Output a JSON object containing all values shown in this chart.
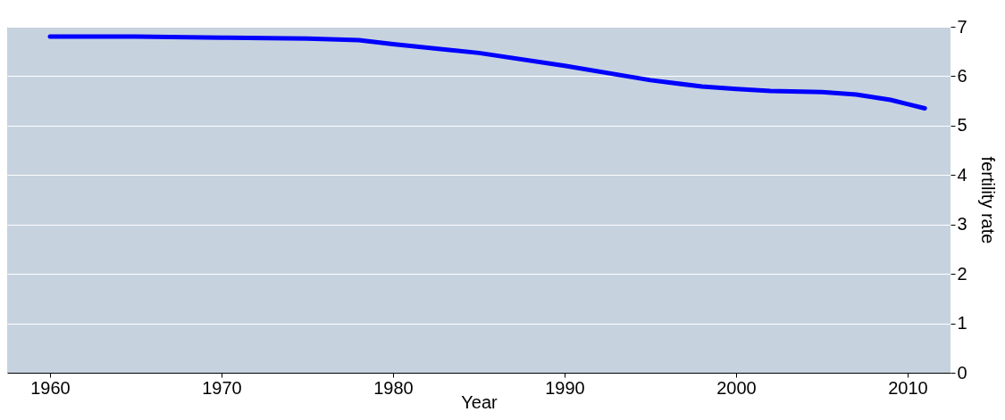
{
  "chart_data": {
    "type": "line",
    "xlabel": "Year",
    "ylabel": "fertility rate",
    "series": [
      {
        "color": "#0000ff",
        "x": [
          1960,
          1965,
          1970,
          1975,
          1978,
          1980,
          1985,
          1990,
          1995,
          1998,
          2000,
          2002,
          2005,
          2007,
          2009,
          2011
        ],
        "values": [
          6.8,
          6.8,
          6.78,
          6.76,
          6.73,
          6.65,
          6.47,
          6.21,
          5.92,
          5.79,
          5.74,
          5.7,
          5.68,
          5.63,
          5.52,
          5.35
        ]
      }
    ],
    "xlim": [
      1957.5,
      2012.5
    ],
    "xticks": [
      1960,
      1970,
      1980,
      1990,
      2000,
      2010
    ],
    "ylim": [
      0,
      7
    ],
    "yticks": [
      0,
      1,
      2,
      3,
      4,
      5,
      6,
      7
    ],
    "grid": "y",
    "marker": "none",
    "line_style": "solid"
  }
}
